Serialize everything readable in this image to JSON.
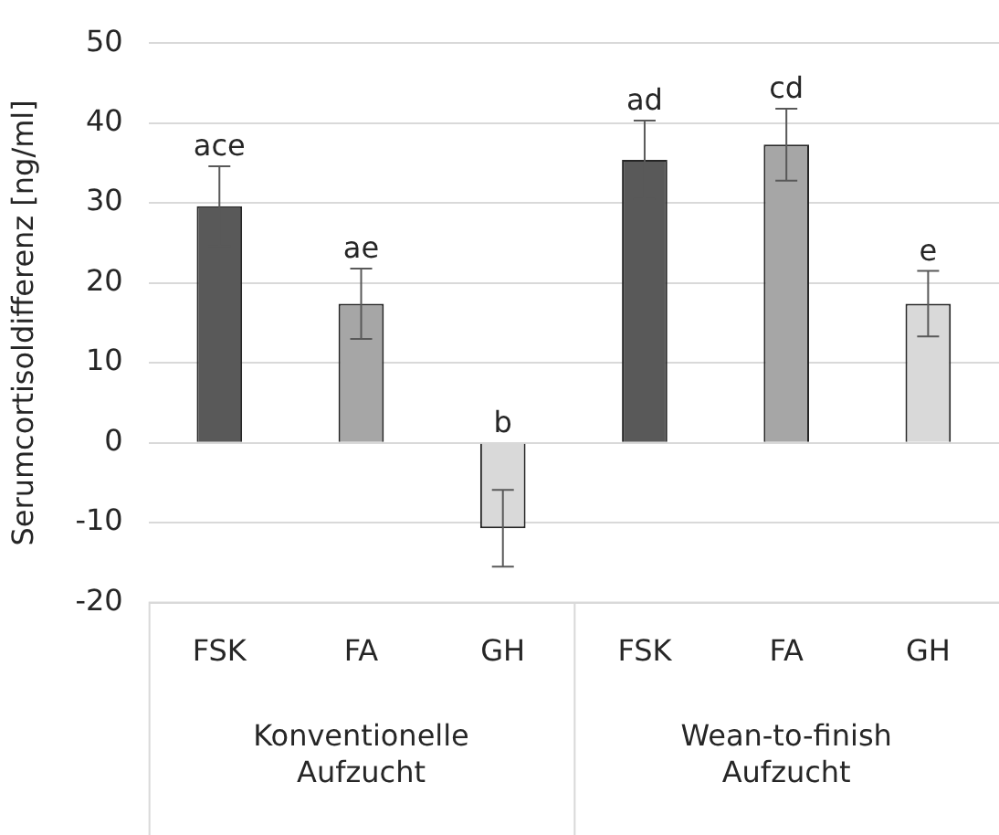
{
  "chart_data": {
    "type": "bar",
    "ylabel": "Serumcortisoldifferenz [ng/ml]",
    "categories": [
      "FSK",
      "FA",
      "GH",
      "FSK",
      "FA",
      "GH"
    ],
    "values": [
      29.6,
      17.4,
      -10.7,
      35.4,
      37.3,
      17.4
    ],
    "colors": [
      "#595959",
      "#a6a6a6",
      "#d9d9d9",
      "#595959",
      "#a6a6a6",
      "#d9d9d9"
    ],
    "errors": [
      5,
      4.4,
      4.8,
      4.9,
      4.5,
      4.1
    ],
    "value_labels": [
      "ace",
      "ae",
      "b",
      "ad",
      "cd",
      "e"
    ],
    "annotations": [
      "Konventionelle Aufzucht",
      "Wean-to-finish Aufzucht"
    ],
    "ylim": [
      -20,
      50
    ],
    "yticks": [
      -20,
      -10,
      0,
      10,
      20,
      30,
      40,
      50
    ],
    "grid": "y",
    "legend": false
  }
}
